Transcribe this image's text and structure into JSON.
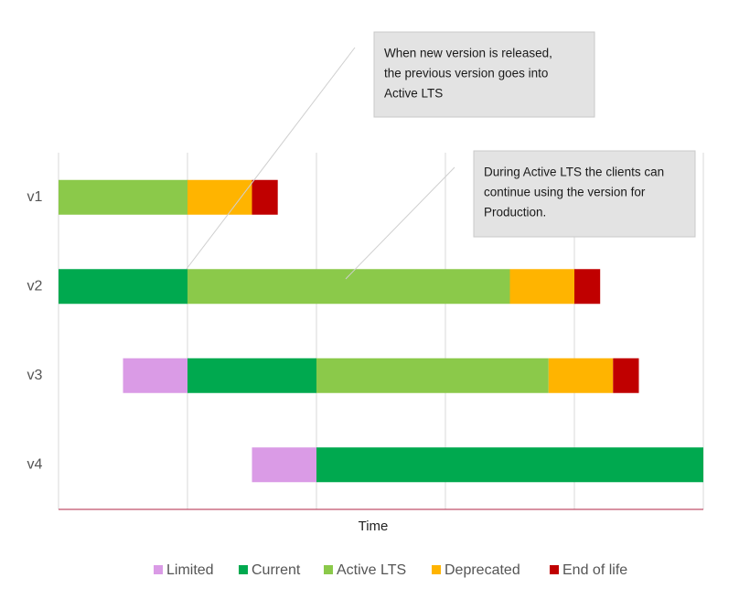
{
  "chart_data": {
    "type": "gantt",
    "x_label": "Time",
    "categories": [
      "v1",
      "v2",
      "v3",
      "v4"
    ],
    "starts": [
      0,
      0,
      0.5,
      1.5
    ],
    "series": [
      {
        "name": "Limited",
        "color": "#da9be6",
        "values": [
          null,
          null,
          0.5,
          0.5
        ]
      },
      {
        "name": "Current",
        "color": "#00a94f",
        "values": [
          null,
          1,
          1,
          3
        ]
      },
      {
        "name": "Active LTS",
        "color": "#8bc94a",
        "values": [
          1,
          2.5,
          1.8,
          null
        ]
      },
      {
        "name": "Deprecated",
        "color": "#ffb400",
        "values": [
          0.5,
          0.5,
          0.5,
          null
        ]
      },
      {
        "name": "End of life",
        "color": "#c00000",
        "values": [
          0.2,
          0.2,
          0.2,
          null
        ]
      }
    ],
    "xlim": [
      0,
      5
    ],
    "xticks": [
      0,
      1,
      2,
      3,
      4,
      5
    ],
    "grid": true,
    "legend": "bottom",
    "annotations": [
      {
        "text": [
          "When new version is released,",
          "the previous version goes into",
          "Active LTS"
        ]
      },
      {
        "text": [
          "During Active LTS the clients can",
          "continue using the version for",
          "Production."
        ]
      }
    ]
  }
}
